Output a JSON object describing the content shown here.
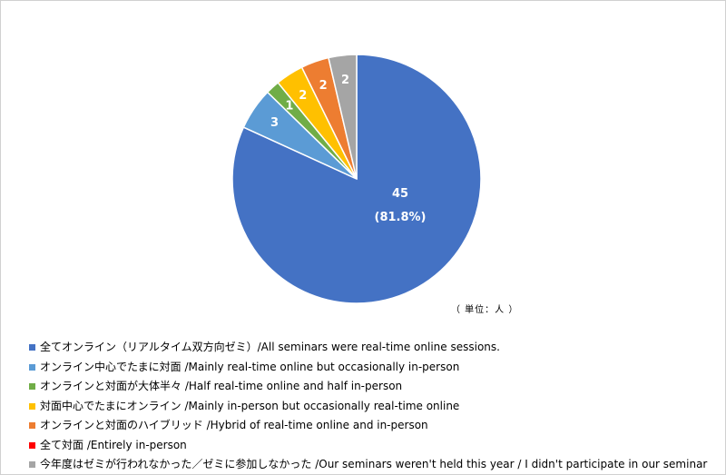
{
  "chart_data": {
    "type": "pie",
    "unit_label": "（ 単位：人 ）",
    "slices": [
      {
        "label": "全てオンライン（リアルタイム双方向ゼミ）/All seminars were real-time online sessions.",
        "value": 45,
        "value_label": "45",
        "percent_label": "(81.8%)",
        "color": "#4472C4"
      },
      {
        "label": "オンライン中心でたまに対面 /Mainly real-time online but occasionally in-person",
        "value": 3,
        "value_label": "3",
        "color": "#5B9BD5"
      },
      {
        "label": "オンラインと対面が大体半々 /Half real-time online and half in-person",
        "value": 1,
        "value_label": "1",
        "color": "#70AD47"
      },
      {
        "label": "対面中心でたまにオンライン /Mainly in-person but occasionally real-time online",
        "value": 2,
        "value_label": "2",
        "color": "#FFC000"
      },
      {
        "label": "オンラインと対面のハイブリッド /Hybrid of real-time online and in-person",
        "value": 2,
        "value_label": "2",
        "color": "#ED7D31"
      },
      {
        "label": "全て対面 /Entirely in-person",
        "value": 0,
        "value_label": "",
        "color": "#FF0000"
      },
      {
        "label": "今年度はゼミが行われなかった／ゼミに参加しなかった /Our seminars weren't held this year / I didn't participate in our seminar",
        "value": 2,
        "value_label": "2",
        "color": "#A5A5A5"
      }
    ]
  }
}
